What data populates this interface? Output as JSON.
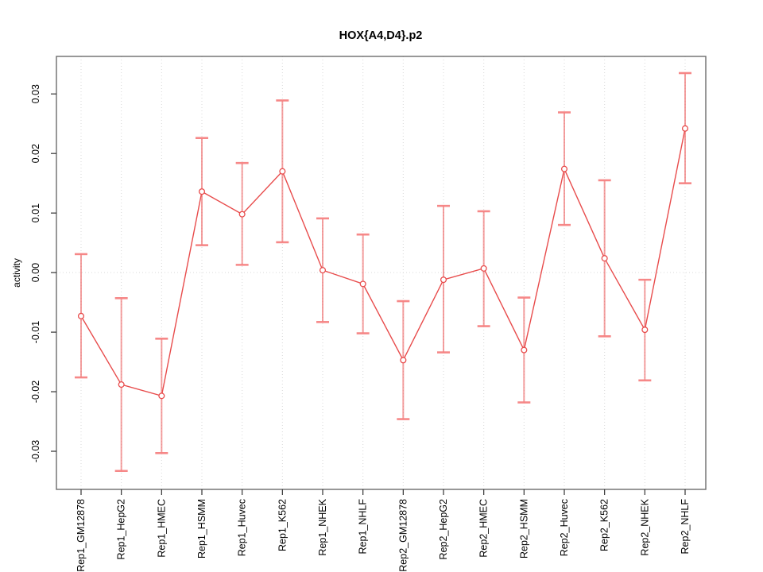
{
  "page": {
    "background": "#ffffff"
  },
  "chart_data": {
    "type": "line",
    "title": "HOX{A4,D4}.p2",
    "xlabel": "",
    "ylabel": "activity",
    "ylim": [
      -0.0364,
      0.0363
    ],
    "yticks": [
      -0.03,
      -0.02,
      -0.01,
      0.0,
      0.01,
      0.02,
      0.03
    ],
    "ytick_label_format": "two_decimals_rotated_90",
    "xtick_label_rotation": 90,
    "legend": null,
    "grid": {
      "vertical_dotted_per_category": true,
      "horizontal_dotted_at_zero": true
    },
    "error_bars": true,
    "marker": "open-circle",
    "categories": [
      "Rep1_GM12878",
      "Rep1_HepG2",
      "Rep1_HMEC",
      "Rep1_HSMM",
      "Rep1_Huvec",
      "Rep1_K562",
      "Rep1_NHEK",
      "Rep1_NHLF",
      "Rep2_GM12878",
      "Rep2_HepG2",
      "Rep2_HMEC",
      "Rep2_HSMM",
      "Rep2_Huvec",
      "Rep2_K562",
      "Rep2_NHEK",
      "Rep2_NHLF"
    ],
    "series": [
      {
        "name": "activity",
        "values": [
          -0.0073,
          -0.0188,
          -0.0207,
          0.0136,
          0.0098,
          0.017,
          0.0004,
          -0.0019,
          -0.0147,
          -0.0012,
          0.0007,
          -0.013,
          0.0174,
          0.0024,
          -0.0096,
          0.0242
        ],
        "upper": [
          0.0031,
          -0.0043,
          -0.0111,
          0.0226,
          0.0184,
          0.0289,
          0.0091,
          0.0064,
          -0.0048,
          0.0112,
          0.0103,
          -0.0042,
          0.0269,
          0.0155,
          -0.0012,
          0.0335
        ],
        "lower": [
          -0.0176,
          -0.0333,
          -0.0303,
          0.0046,
          0.0013,
          0.0051,
          -0.0083,
          -0.0102,
          -0.0246,
          -0.0134,
          -0.009,
          -0.0218,
          0.008,
          -0.0107,
          -0.0181,
          0.015
        ]
      }
    ]
  },
  "colors": {
    "series_line": "#e84c4c",
    "marker_stroke": "#e84c4c",
    "marker_fill": "#ffffff",
    "error_bar": "rgba(235,80,80,0.55)",
    "error_cap": "rgba(246,130,130,0.95)",
    "grid": "#d9d9d9",
    "box": "#6b6b6b",
    "tick": "#333333",
    "text": "#000000"
  }
}
